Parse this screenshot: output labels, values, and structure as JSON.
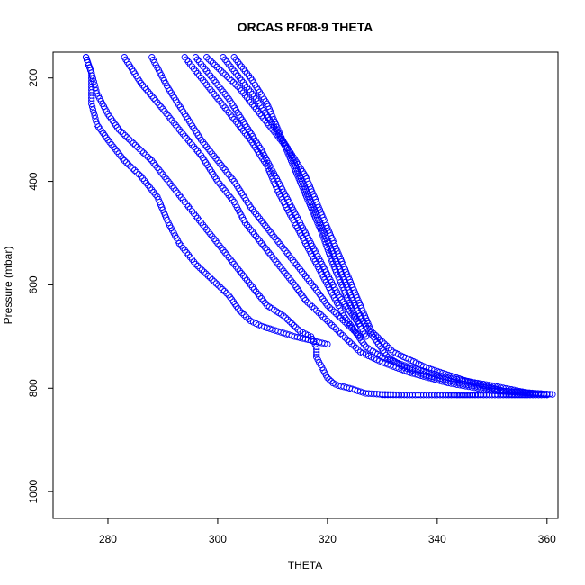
{
  "chart_data": {
    "type": "scatter",
    "title": "ORCAS RF08-9 THETA",
    "xlabel": "THETA",
    "ylabel": "Pressure (mbar)",
    "xlim": [
      270,
      362
    ],
    "ylim": [
      1052,
      150
    ],
    "y_reversed": true,
    "x_ticks": [
      280,
      300,
      320,
      340,
      360
    ],
    "y_ticks": [
      200,
      400,
      600,
      800,
      1000
    ],
    "grid": false,
    "marker": "open-circle",
    "color": "#0000ff",
    "series": [
      {
        "x": [
          276,
          277,
          278,
          280,
          282,
          285,
          288,
          291,
          294,
          297,
          300,
          303,
          306,
          309,
          312,
          315,
          317,
          318,
          318,
          319,
          320,
          321,
          322,
          324,
          327,
          330,
          335,
          340,
          350,
          360
        ],
        "y": [
          160,
          190,
          230,
          270,
          300,
          330,
          360,
          400,
          440,
          480,
          520,
          560,
          600,
          640,
          660,
          690,
          700,
          720,
          740,
          760,
          780,
          790,
          795,
          800,
          810,
          812,
          813,
          813,
          813,
          813
        ]
      },
      {
        "x": [
          276,
          277,
          277,
          278,
          280,
          283,
          286,
          289,
          291,
          293,
          296,
          299,
          302,
          304,
          306,
          308,
          311,
          314,
          316,
          318,
          320
        ],
        "y": [
          160,
          190,
          250,
          290,
          320,
          360,
          390,
          430,
          480,
          520,
          560,
          590,
          620,
          650,
          670,
          680,
          690,
          700,
          705,
          710,
          715
        ]
      },
      {
        "x": [
          283,
          286,
          290,
          293,
          297,
          300,
          303,
          305,
          308,
          311,
          314,
          316,
          318,
          320,
          322,
          324,
          326,
          330,
          335,
          342,
          350,
          360
        ],
        "y": [
          160,
          210,
          260,
          300,
          350,
          400,
          440,
          480,
          520,
          560,
          600,
          630,
          650,
          670,
          690,
          710,
          730,
          750,
          770,
          790,
          805,
          812
        ]
      },
      {
        "x": [
          288,
          291,
          294,
          297,
          300,
          303,
          306,
          309,
          312,
          315,
          318,
          320,
          322,
          324,
          326
        ],
        "y": [
          160,
          220,
          270,
          320,
          360,
          400,
          450,
          490,
          530,
          570,
          610,
          640,
          660,
          680,
          700
        ]
      },
      {
        "x": [
          294,
          297,
          300,
          303,
          306,
          309,
          311,
          313,
          315,
          317,
          319,
          321,
          323,
          325,
          327,
          330,
          335,
          342,
          350,
          357
        ],
        "y": [
          160,
          200,
          240,
          280,
          320,
          370,
          420,
          460,
          500,
          540,
          580,
          620,
          660,
          690,
          720,
          740,
          760,
          780,
          795,
          810
        ]
      },
      {
        "x": [
          296,
          299,
          302,
          305,
          308,
          310,
          312,
          314,
          316,
          318,
          320,
          322,
          324,
          326
        ],
        "y": [
          160,
          200,
          240,
          290,
          340,
          380,
          420,
          460,
          500,
          540,
          580,
          620,
          650,
          680
        ]
      },
      {
        "x": [
          298,
          301,
          304,
          307,
          310,
          313,
          315,
          317,
          319,
          321,
          323,
          325,
          327,
          329,
          331,
          334,
          338,
          344,
          352,
          361
        ],
        "y": [
          160,
          190,
          220,
          260,
          300,
          340,
          390,
          440,
          490,
          540,
          590,
          640,
          680,
          710,
          740,
          760,
          775,
          790,
          805,
          812
        ]
      },
      {
        "x": [
          301,
          304,
          307,
          310,
          313,
          316,
          318,
          320,
          322,
          324,
          326,
          328,
          332,
          338,
          345,
          352
        ],
        "y": [
          160,
          200,
          240,
          290,
          340,
          390,
          440,
          490,
          540,
          590,
          640,
          690,
          730,
          760,
          785,
          805
        ]
      },
      {
        "x": [
          303,
          306,
          309,
          311,
          313,
          315,
          317,
          319,
          321,
          323,
          325,
          327
        ],
        "y": [
          160,
          200,
          250,
          300,
          350,
          400,
          450,
          500,
          560,
          610,
          660,
          700
        ]
      },
      {
        "x": [
          330,
          335,
          340,
          345,
          350,
          355,
          360
        ],
        "y": [
          813,
          813,
          813,
          813,
          813,
          813,
          813
        ]
      }
    ]
  }
}
